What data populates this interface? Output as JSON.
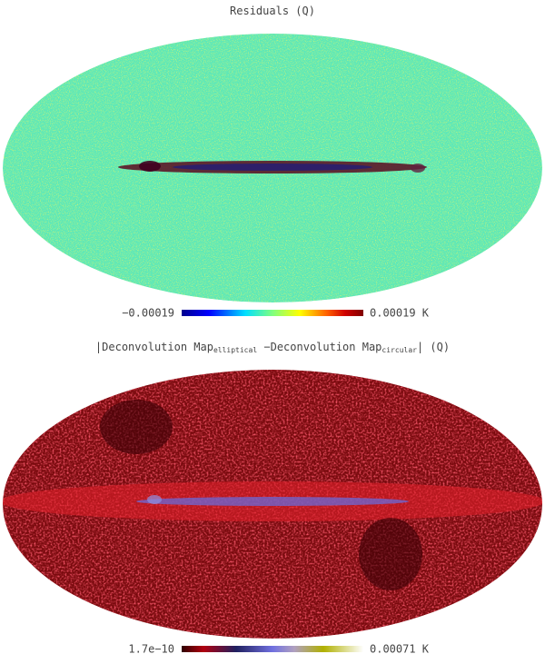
{
  "panels": [
    {
      "title": [
        "Residuals (Q)"
      ],
      "colorbar_min": "−0.00019",
      "colorbar_max": "0.00019 K"
    },
    {
      "title": [
        "|Deconvolution Map",
        "elliptical",
        " −Deconvolution Map",
        "circular",
        "| (Q)"
      ],
      "colorbar_min": "1.7e−10",
      "colorbar_max": "0.00071 K"
    }
  ]
}
